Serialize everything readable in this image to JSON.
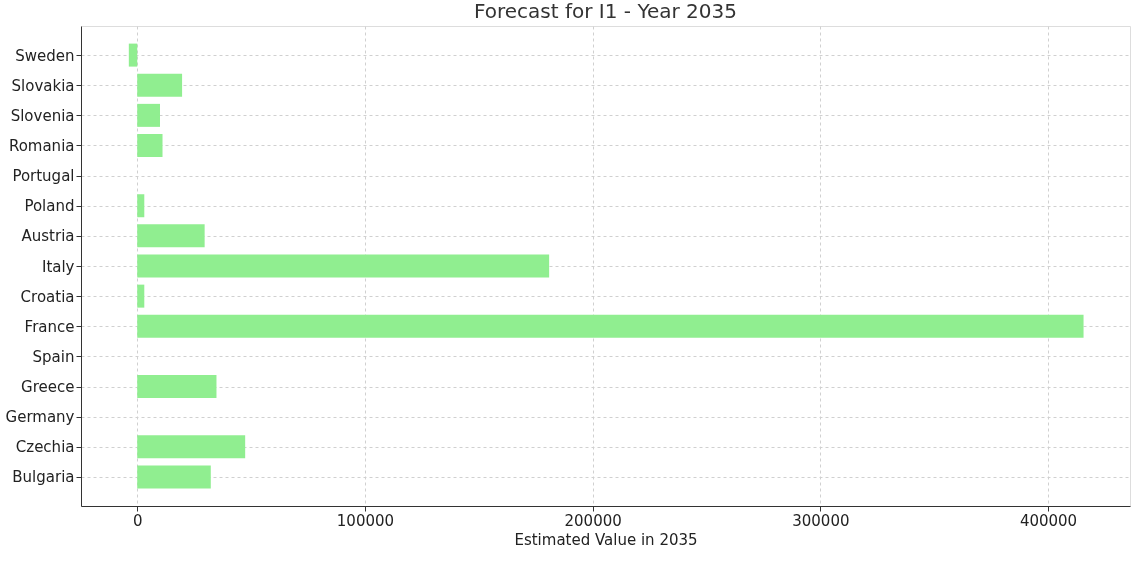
{
  "chart_data": {
    "type": "bar",
    "orientation": "horizontal",
    "title": "Forecast for I1 - Year 2035",
    "xlabel": "Estimated Value in 2035",
    "categories": [
      "Sweden",
      "Slovakia",
      "Slovenia",
      "Romania",
      "Portugal",
      "Poland",
      "Austria",
      "Italy",
      "Croatia",
      "France",
      "Spain",
      "Greece",
      "Germany",
      "Czechia",
      "Bulgaria"
    ],
    "values": [
      -3700,
      19700,
      10000,
      11100,
      null,
      3100,
      29600,
      180900,
      3100,
      415600,
      null,
      34800,
      null,
      47400,
      32300
    ],
    "color": "#90ee90",
    "xlim": [
      -24700,
      436000
    ],
    "xticks": [
      0,
      100000,
      200000,
      300000,
      400000
    ],
    "grid": true
  }
}
